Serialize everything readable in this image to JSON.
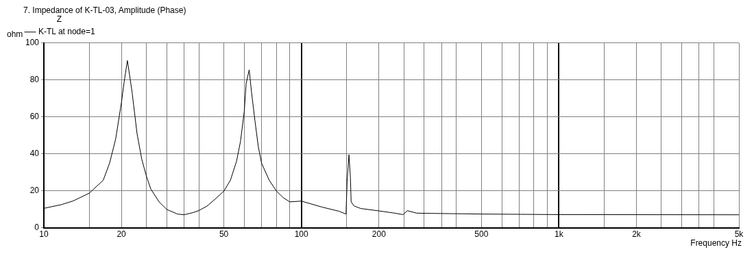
{
  "chart_data": {
    "type": "line",
    "title": "7. Impedance of K-TL-03, Amplitude (Phase)",
    "xlabel": "Frequency Hz",
    "ylabel": "ohm",
    "legend_title": "Z",
    "legend": "top left",
    "grid": true,
    "log": "x",
    "marker": "none",
    "line_style": "solid",
    "xlim": [
      10,
      5000
    ],
    "ylim": [
      0,
      100
    ],
    "xticks": [
      10,
      {
        "value": 15,
        "label": null
      },
      20,
      {
        "value": 25,
        "label": null
      },
      {
        "value": 30,
        "label": null
      },
      {
        "value": 35,
        "label": null
      },
      {
        "value": 40,
        "label": null
      },
      50,
      {
        "value": 60,
        "label": null
      },
      {
        "value": 70,
        "label": null
      },
      {
        "value": 80,
        "label": null
      },
      {
        "value": 90,
        "label": null
      },
      100,
      {
        "value": 150,
        "label": null
      },
      200,
      {
        "value": 250,
        "label": null
      },
      {
        "value": 300,
        "label": null
      },
      {
        "value": 350,
        "label": null
      },
      {
        "value": 400,
        "label": null
      },
      500,
      {
        "value": 600,
        "label": null
      },
      {
        "value": 700,
        "label": null
      },
      {
        "value": 800,
        "label": null
      },
      {
        "value": 900,
        "label": null
      },
      {
        "value": 1000,
        "label": "1k"
      },
      {
        "value": 1500,
        "label": null
      },
      {
        "value": 2000,
        "label": "2k"
      },
      {
        "value": 2500,
        "label": null
      },
      {
        "value": 3000,
        "label": null
      },
      {
        "value": 3500,
        "label": null
      },
      {
        "value": 4000,
        "label": null
      },
      {
        "value": 5000,
        "label": "5k"
      }
    ],
    "yticks": [
      0,
      20,
      40,
      60,
      80,
      100
    ],
    "series": [
      {
        "name": "K-TL at node=1",
        "color": "#000000",
        "x": [
          10,
          11.7,
          13,
          15,
          17,
          18,
          19,
          20,
          20.5,
          21.1,
          22,
          23,
          24,
          25,
          26,
          28,
          30,
          33,
          35,
          38,
          40,
          43,
          46,
          50,
          53,
          56,
          58,
          60,
          61,
          62.7,
          64,
          66,
          68,
          70,
          75,
          80,
          85,
          90,
          100,
          120,
          140,
          149,
          150.5,
          153,
          155,
          156,
          160,
          170,
          200,
          230,
          248,
          258,
          280,
          300,
          500,
          1000,
          5000
        ],
        "values": [
          10.5,
          12.5,
          14.5,
          18.7,
          25.7,
          35,
          48,
          67.7,
          79,
          90.5,
          73.5,
          51,
          37,
          28,
          21,
          14,
          9.9,
          7.4,
          7,
          8.2,
          9.3,
          11.7,
          15.2,
          19.8,
          25.7,
          36,
          46.7,
          63,
          78,
          85.5,
          73.5,
          58,
          44,
          35,
          25.7,
          19.8,
          16.3,
          14,
          14.4,
          11.2,
          8.9,
          7.4,
          25,
          39.5,
          27,
          14,
          11.8,
          10.4,
          9.1,
          7.9,
          7.1,
          9.2,
          7.9,
          7.8,
          7.4,
          7.1,
          7
        ]
      }
    ]
  }
}
